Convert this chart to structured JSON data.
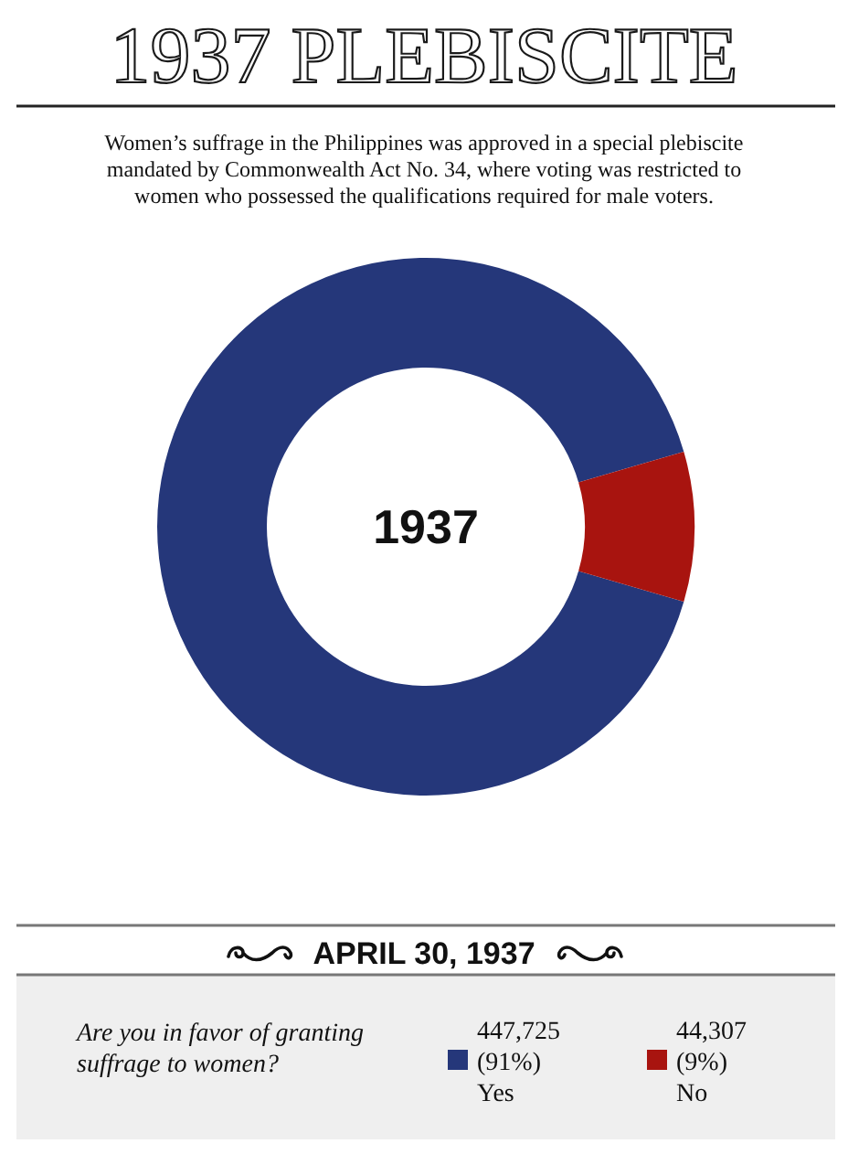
{
  "chart_data": {
    "type": "donut",
    "title": "1937 PLEBISCITE",
    "subtitle": "Women’s suffrage in the Philippines was approved in a special plebiscite mandated by Commonwealth Act No. 34, where voting was restricted to women who possessed the qualifications required for male voters.",
    "categories": [
      "Yes",
      "No"
    ],
    "values": [
      447725,
      44307
    ],
    "colors": [
      "#25377a",
      "#a8140f"
    ],
    "value_labels": [
      "447,725 (91%)",
      "44,307 (9%)"
    ],
    "legend": "bottom",
    "legend_title": "Are you in favor of granting suffrage to women?",
    "annotations": [
      "1937",
      "APRIL 30, 1937"
    ]
  }
}
